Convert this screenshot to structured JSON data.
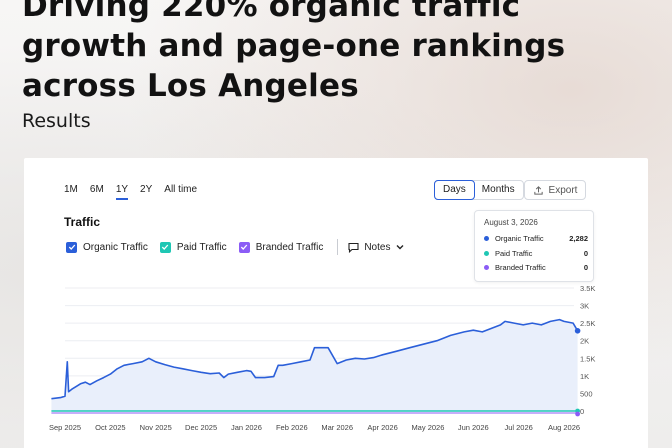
{
  "headline": {
    "line1": "Driving 220% organic traffic",
    "line2": "growth and page-one rankings",
    "line3": "across Los Angeles"
  },
  "section_label": "Results",
  "dashboard": {
    "ranges": [
      "1M",
      "6M",
      "1Y",
      "2Y",
      "All time"
    ],
    "active_range": "1Y",
    "view_toggle": {
      "days": "Days",
      "months": "Months",
      "active": "Days"
    },
    "export_label": "Export",
    "title": "Traffic",
    "legend": {
      "organic": "Organic Traffic",
      "paid": "Paid Traffic",
      "branded": "Branded Traffic",
      "notes": "Notes"
    },
    "tooltip": {
      "date": "August 3, 2026",
      "rows": [
        {
          "label": "Organic Traffic",
          "value": "2,282",
          "color": "#2b5fd9"
        },
        {
          "label": "Paid Traffic",
          "value": "0",
          "color": "#1fc7b4"
        },
        {
          "label": "Branded Traffic",
          "value": "0",
          "color": "#8b5cf6"
        }
      ]
    }
  },
  "colors": {
    "organic": "#2b5fd9",
    "paid": "#1fc7b4",
    "branded": "#8b5cf6",
    "area_fill": "#e9effb"
  },
  "icons": {
    "export": "upload-icon",
    "notes": "speech-bubble-icon",
    "notes_toggle": "chevron-down-icon",
    "checkbox": "check-icon"
  },
  "chart_data": {
    "type": "line",
    "ylim": [
      0,
      3500
    ],
    "yticks": [
      0,
      500,
      1000,
      1500,
      2000,
      2500,
      3000,
      3500
    ],
    "ytick_labels": [
      "0",
      "500",
      "1K",
      "1.5K",
      "2K",
      "2.5K",
      "3K",
      "3.5K"
    ],
    "xtick_labels": [
      "Sep 2025",
      "Oct 2025",
      "Nov 2025",
      "Dec 2025",
      "Jan 2026",
      "Feb 2026",
      "Mar 2026",
      "Apr 2026",
      "May 2026",
      "Jun 2026",
      "Jul 2026",
      "Aug 2026"
    ],
    "x_months": [
      0,
      1,
      2,
      3,
      4,
      5,
      6,
      7,
      8,
      9,
      10,
      11
    ],
    "series": [
      {
        "name": "Organic Traffic",
        "points": [
          [
            -0.3,
            350
          ],
          [
            -0.1,
            380
          ],
          [
            0.0,
            420
          ],
          [
            0.05,
            1400
          ],
          [
            0.08,
            550
          ],
          [
            0.15,
            620
          ],
          [
            0.25,
            700
          ],
          [
            0.35,
            780
          ],
          [
            0.45,
            820
          ],
          [
            0.55,
            750
          ],
          [
            0.7,
            860
          ],
          [
            0.85,
            950
          ],
          [
            1.0,
            1050
          ],
          [
            1.15,
            1200
          ],
          [
            1.3,
            1300
          ],
          [
            1.5,
            1350
          ],
          [
            1.7,
            1400
          ],
          [
            1.85,
            1500
          ],
          [
            2.0,
            1400
          ],
          [
            2.2,
            1320
          ],
          [
            2.4,
            1250
          ],
          [
            2.6,
            1200
          ],
          [
            2.8,
            1150
          ],
          [
            3.0,
            1100
          ],
          [
            3.2,
            1060
          ],
          [
            3.4,
            1080
          ],
          [
            3.5,
            950
          ],
          [
            3.6,
            1050
          ],
          [
            3.8,
            1100
          ],
          [
            4.0,
            1150
          ],
          [
            4.1,
            1130
          ],
          [
            4.2,
            950
          ],
          [
            4.4,
            950
          ],
          [
            4.6,
            980
          ],
          [
            4.7,
            1300
          ],
          [
            4.8,
            1300
          ],
          [
            5.0,
            1350
          ],
          [
            5.2,
            1400
          ],
          [
            5.4,
            1450
          ],
          [
            5.5,
            1800
          ],
          [
            5.8,
            1800
          ],
          [
            6.0,
            1350
          ],
          [
            6.2,
            1450
          ],
          [
            6.4,
            1500
          ],
          [
            6.6,
            1480
          ],
          [
            6.8,
            1520
          ],
          [
            7.0,
            1600
          ],
          [
            7.3,
            1700
          ],
          [
            7.6,
            1800
          ],
          [
            7.9,
            1900
          ],
          [
            8.2,
            2000
          ],
          [
            8.5,
            2150
          ],
          [
            8.8,
            2250
          ],
          [
            9.0,
            2300
          ],
          [
            9.2,
            2250
          ],
          [
            9.4,
            2350
          ],
          [
            9.6,
            2450
          ],
          [
            9.7,
            2550
          ],
          [
            9.9,
            2500
          ],
          [
            10.1,
            2450
          ],
          [
            10.3,
            2500
          ],
          [
            10.5,
            2450
          ],
          [
            10.7,
            2550
          ],
          [
            10.9,
            2600
          ],
          [
            11.0,
            2550
          ],
          [
            11.2,
            2500
          ],
          [
            11.3,
            2282
          ]
        ]
      },
      {
        "name": "Paid Traffic",
        "points": [
          [
            -0.3,
            0
          ],
          [
            11.3,
            0
          ]
        ]
      },
      {
        "name": "Branded Traffic",
        "points": [
          [
            -0.3,
            0
          ],
          [
            11.3,
            0
          ]
        ]
      }
    ],
    "grid": true,
    "legend": "top-left"
  }
}
